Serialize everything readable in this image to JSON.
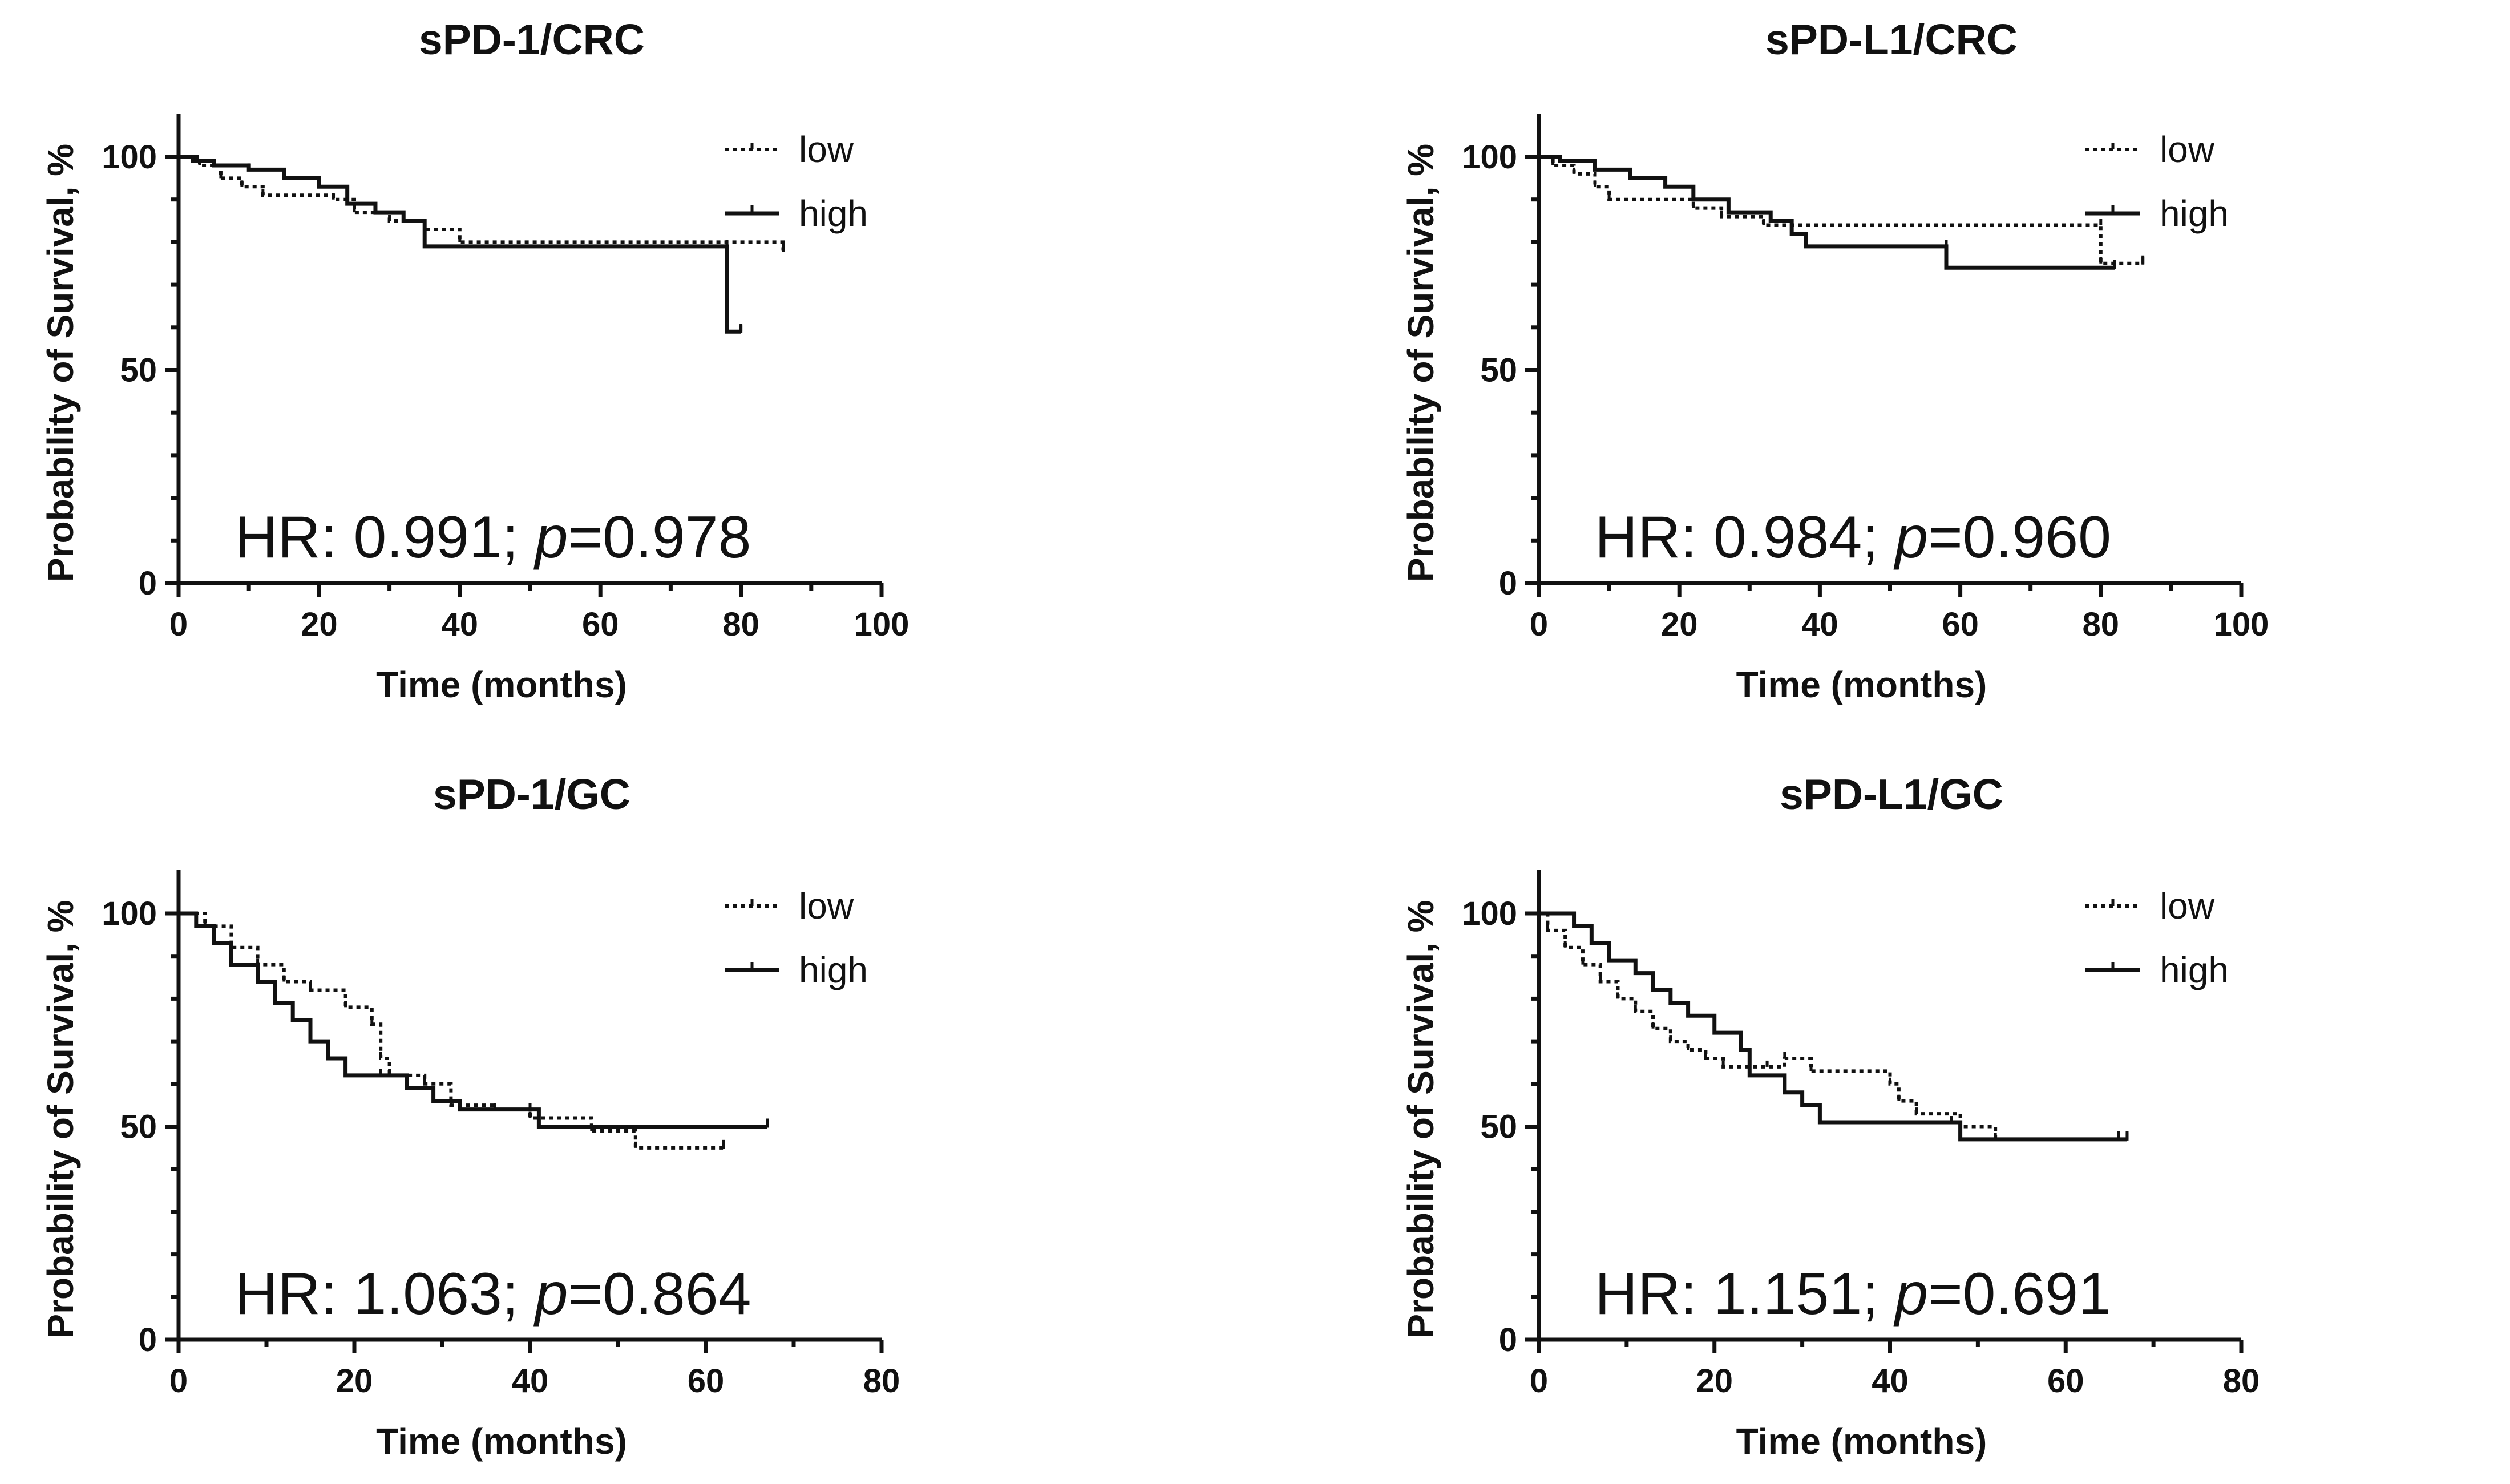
{
  "legend": {
    "low": "low",
    "high": "high"
  },
  "chart_data": [
    {
      "type": "line",
      "title": "sPD-1/CRC",
      "xlabel": "Time (months)",
      "ylabel": "Probability of Survival, %",
      "xlim": [
        0,
        100
      ],
      "ylim": [
        0,
        110
      ],
      "xticks": [
        "0",
        "20",
        "40",
        "60",
        "80",
        "100"
      ],
      "yticks": [
        "0",
        "50",
        "100"
      ],
      "hr": "0.991",
      "p": "0.978",
      "series": [
        {
          "name": "low",
          "steps": [
            [
              0,
              100
            ],
            [
              3,
              98
            ],
            [
              6,
              95
            ],
            [
              9,
              93
            ],
            [
              12,
              91
            ],
            [
              22,
              90
            ],
            [
              25,
              87
            ],
            [
              30,
              85
            ],
            [
              35,
              83
            ],
            [
              40,
              80
            ],
            [
              86,
              78
            ]
          ]
        },
        {
          "name": "high",
          "steps": [
            [
              0,
              100
            ],
            [
              2,
              99
            ],
            [
              5,
              98
            ],
            [
              10,
              97
            ],
            [
              15,
              95
            ],
            [
              20,
              93
            ],
            [
              24,
              89
            ],
            [
              28,
              87
            ],
            [
              32,
              85
            ],
            [
              35,
              79
            ],
            [
              78,
              79
            ],
            [
              78,
              59
            ],
            [
              80,
              59
            ]
          ]
        }
      ]
    },
    {
      "type": "line",
      "title": "sPD-L1/CRC",
      "xlabel": "Time (months)",
      "ylabel": "Probability of Survival, %",
      "xlim": [
        0,
        100
      ],
      "ylim": [
        0,
        110
      ],
      "xticks": [
        "0",
        "20",
        "40",
        "60",
        "80",
        "100"
      ],
      "yticks": [
        "0",
        "50",
        "100"
      ],
      "hr": "0.984",
      "p": "0.960",
      "series": [
        {
          "name": "low",
          "steps": [
            [
              0,
              100
            ],
            [
              2,
              98
            ],
            [
              5,
              96
            ],
            [
              8,
              93
            ],
            [
              10,
              90
            ],
            [
              22,
              88
            ],
            [
              26,
              86
            ],
            [
              32,
              84
            ],
            [
              80,
              84
            ],
            [
              80,
              75
            ],
            [
              86,
              75
            ]
          ]
        },
        {
          "name": "high",
          "steps": [
            [
              0,
              100
            ],
            [
              3,
              99
            ],
            [
              8,
              97
            ],
            [
              13,
              95
            ],
            [
              18,
              93
            ],
            [
              22,
              90
            ],
            [
              27,
              87
            ],
            [
              33,
              85
            ],
            [
              36,
              82
            ],
            [
              38,
              79
            ],
            [
              58,
              79
            ],
            [
              58,
              74
            ],
            [
              82,
              74
            ]
          ]
        }
      ]
    },
    {
      "type": "line",
      "title": "sPD-1/GC",
      "xlabel": "Time (months)",
      "ylabel": "Probability of Survival, %",
      "xlim": [
        0,
        80
      ],
      "ylim": [
        0,
        110
      ],
      "xticks": [
        "0",
        "20",
        "40",
        "60",
        "80"
      ],
      "yticks": [
        "0",
        "50",
        "100"
      ],
      "hr": "1.063",
      "p": "0.864",
      "series": [
        {
          "name": "low",
          "steps": [
            [
              0,
              100
            ],
            [
              3,
              97
            ],
            [
              6,
              92
            ],
            [
              9,
              88
            ],
            [
              12,
              84
            ],
            [
              15,
              82
            ],
            [
              19,
              78
            ],
            [
              22,
              74
            ],
            [
              23,
              66
            ],
            [
              24,
              62
            ],
            [
              28,
              60
            ],
            [
              31,
              55
            ],
            [
              36,
              54
            ],
            [
              40,
              52
            ],
            [
              47,
              49
            ],
            [
              52,
              45
            ],
            [
              62,
              45
            ]
          ]
        },
        {
          "name": "high",
          "steps": [
            [
              0,
              100
            ],
            [
              2,
              97
            ],
            [
              4,
              93
            ],
            [
              6,
              88
            ],
            [
              9,
              84
            ],
            [
              11,
              79
            ],
            [
              13,
              75
            ],
            [
              15,
              70
            ],
            [
              17,
              66
            ],
            [
              19,
              62
            ],
            [
              23,
              62
            ],
            [
              26,
              59
            ],
            [
              29,
              56
            ],
            [
              32,
              54
            ],
            [
              40,
              54
            ],
            [
              41,
              50
            ],
            [
              67,
              50
            ]
          ]
        }
      ]
    },
    {
      "type": "line",
      "title": "sPD-L1/GC",
      "xlabel": "Time (months)",
      "ylabel": "Probability of Survival, %",
      "xlim": [
        0,
        80
      ],
      "ylim": [
        0,
        110
      ],
      "xticks": [
        "0",
        "20",
        "40",
        "60",
        "80"
      ],
      "yticks": [
        "0",
        "50",
        "100"
      ],
      "hr": "1.151",
      "p": "0.691",
      "series": [
        {
          "name": "low",
          "steps": [
            [
              0,
              100
            ],
            [
              1,
              96
            ],
            [
              3,
              92
            ],
            [
              5,
              88
            ],
            [
              7,
              84
            ],
            [
              9,
              80
            ],
            [
              11,
              77
            ],
            [
              13,
              73
            ],
            [
              15,
              70
            ],
            [
              17,
              68
            ],
            [
              19,
              66
            ],
            [
              21,
              64
            ],
            [
              26,
              64
            ],
            [
              28,
              66
            ],
            [
              31,
              63
            ],
            [
              40,
              60
            ],
            [
              41,
              56
            ],
            [
              43,
              53
            ],
            [
              48,
              50
            ],
            [
              52,
              47
            ],
            [
              66,
              47
            ]
          ]
        },
        {
          "name": "high",
          "steps": [
            [
              0,
              100
            ],
            [
              4,
              97
            ],
            [
              6,
              93
            ],
            [
              8,
              89
            ],
            [
              11,
              86
            ],
            [
              13,
              82
            ],
            [
              15,
              79
            ],
            [
              17,
              76
            ],
            [
              20,
              72
            ],
            [
              23,
              68
            ],
            [
              24,
              62
            ],
            [
              28,
              58
            ],
            [
              30,
              55
            ],
            [
              32,
              51
            ],
            [
              47,
              51
            ],
            [
              48,
              47
            ],
            [
              67,
              47
            ]
          ]
        }
      ]
    }
  ]
}
